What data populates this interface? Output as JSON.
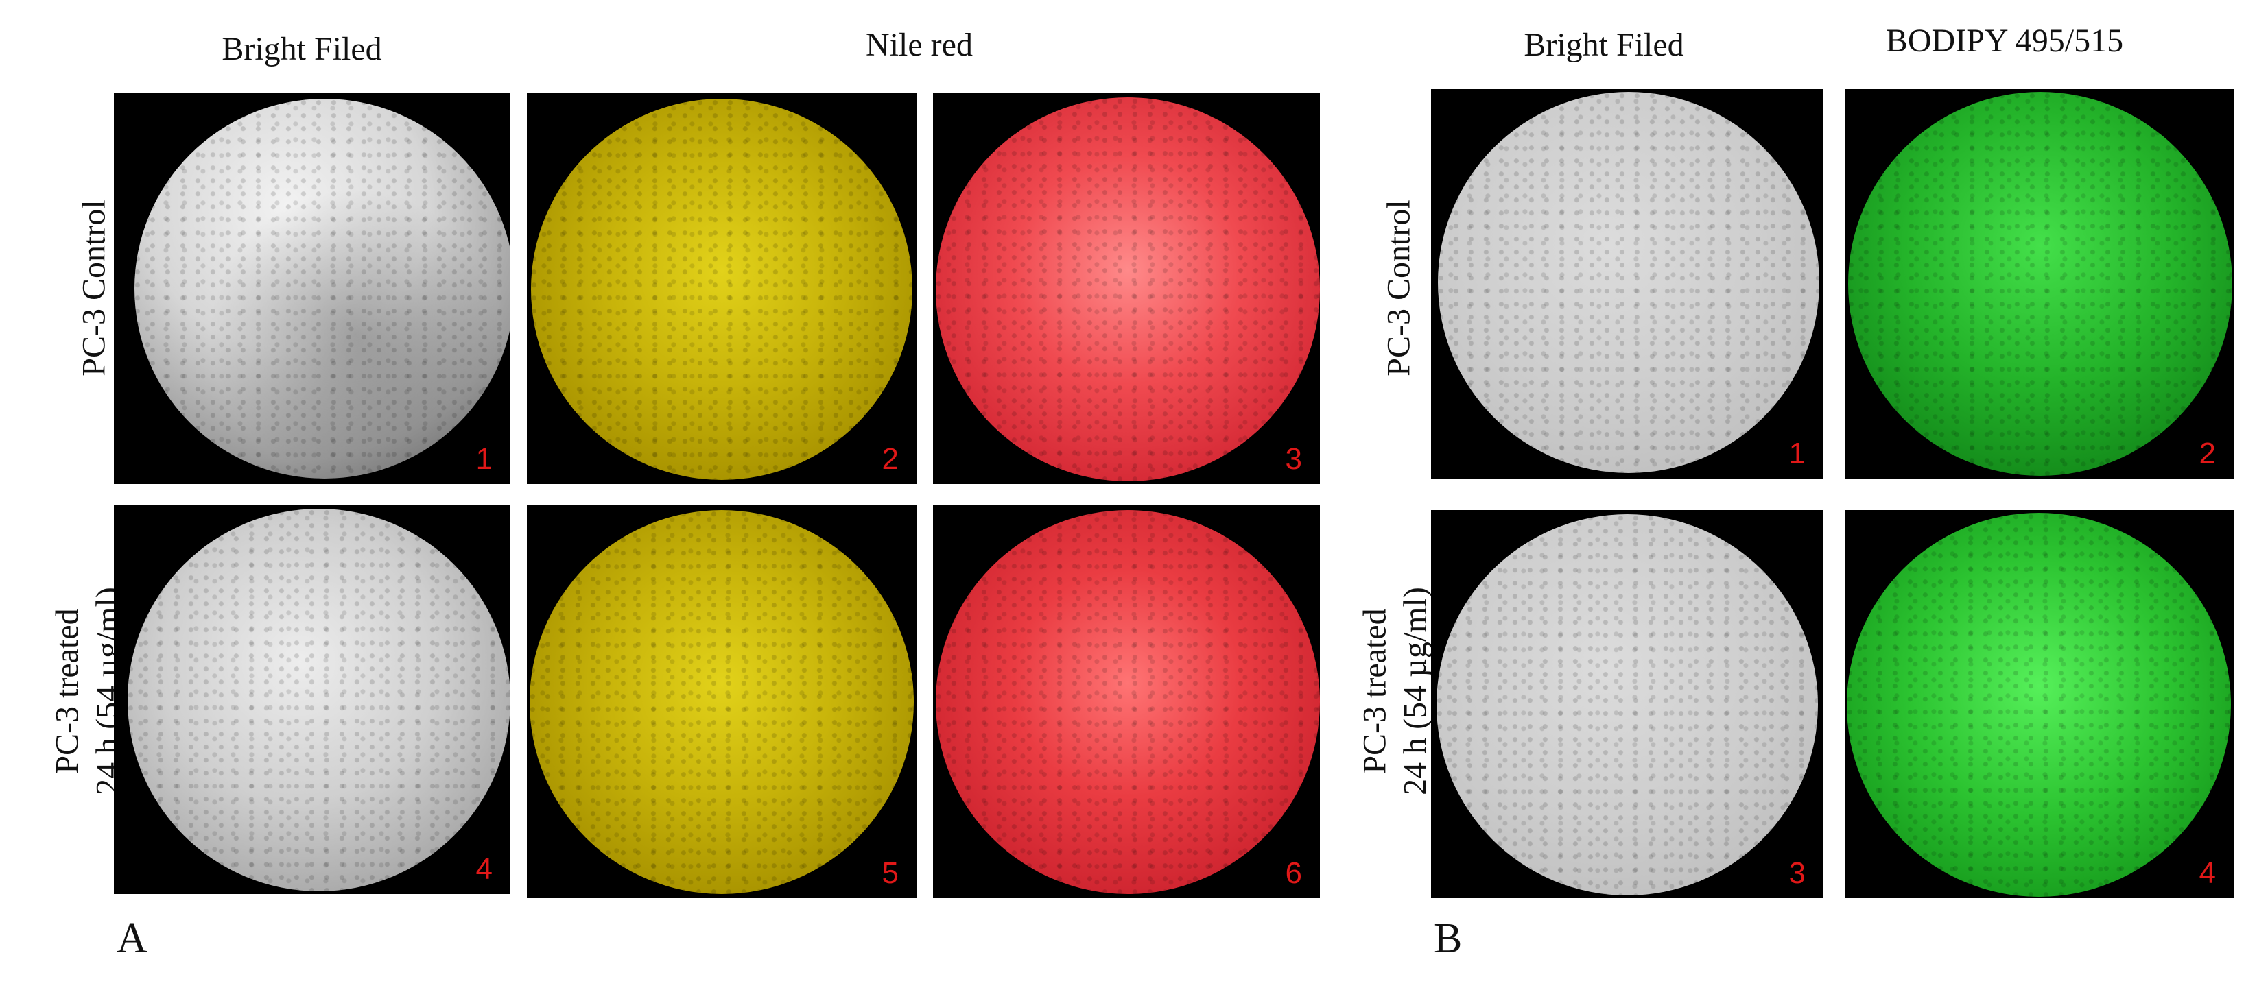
{
  "panelA": {
    "letter": "A",
    "col_bright": "Bright Filed",
    "col_nile": "Nile red",
    "row1_label": "PC-3 Control",
    "row2_label_line1": "PC-3 treated",
    "row2_label_line2": "24 h (54 µg/ml)",
    "tiles": [
      "1",
      "2",
      "3",
      "4",
      "5",
      "6"
    ]
  },
  "panelB": {
    "letter": "B",
    "col_bright": "Bright Filed",
    "col_bodipy": "BODIPY 495/515",
    "row1_label": "PC-3 Control",
    "row2_label_line1": "PC-3 treated",
    "row2_label_line2": "24 h (54 µg/ml)",
    "tiles": [
      "1",
      "2",
      "3",
      "4"
    ]
  },
  "colors": {
    "tile_number": "#e01818",
    "nile_red_yellow_channel": "#c8b40a",
    "nile_red_red_channel": "#f04a50",
    "bodipy_green": "#24b42a",
    "bright_field": "#cfcfcf"
  }
}
